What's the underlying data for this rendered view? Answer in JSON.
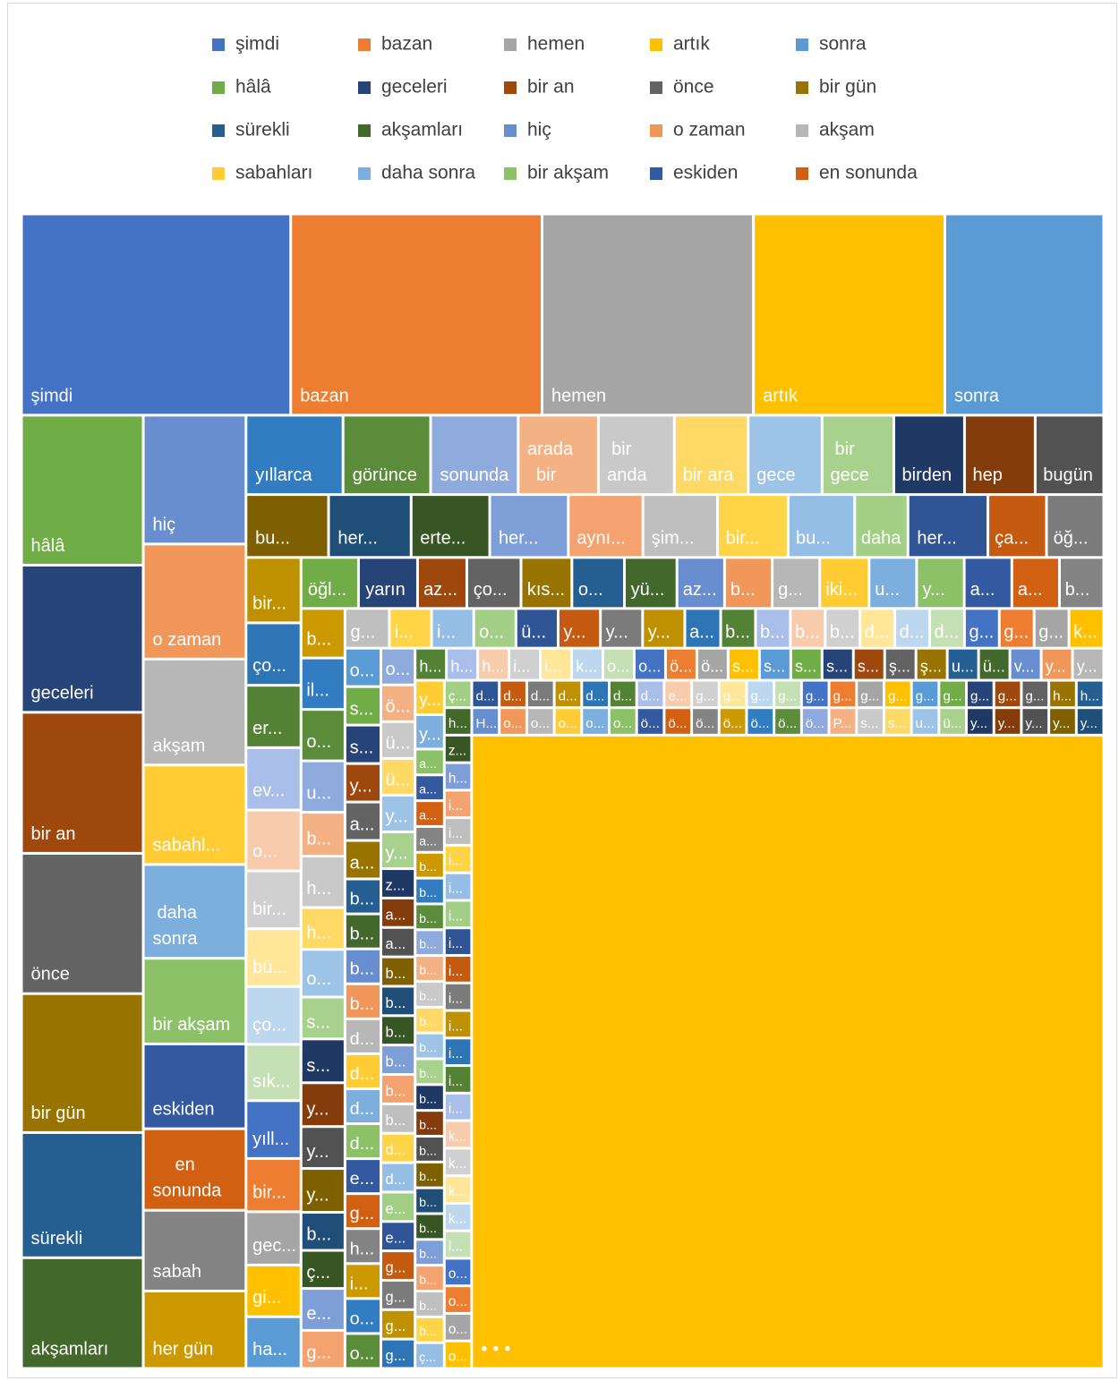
{
  "chart_data": {
    "type": "treemap",
    "legend": {
      "position": "top",
      "columns": 5,
      "entries": [
        "şimdi",
        "bazan",
        "hemen",
        "artık",
        "sonra",
        "hâlâ",
        "geceleri",
        "bir an",
        "önce",
        "bir gün",
        "sürekli",
        "akşamları",
        "hiç",
        "o zaman",
        "akşam",
        "sabahları",
        "daha sonra",
        "bir akşam",
        "eskiden",
        "en sonunda"
      ]
    },
    "palette": [
      "#4472C4",
      "#ED7D31",
      "#A5A5A5",
      "#FFC000",
      "#5B9BD5",
      "#70AD47",
      "#264478",
      "#9E480E",
      "#636363",
      "#997300",
      "#255E91",
      "#43682B",
      "#698ED0",
      "#F1975A",
      "#B7B7B7",
      "#FFCD33",
      "#7CAFDD",
      "#8CC168",
      "#335AA1",
      "#D26012",
      "#848484",
      "#CC9A00",
      "#327DC2",
      "#5B8C3A",
      "#8FAADC",
      "#F4B183",
      "#C9C9C9",
      "#FFD966",
      "#9DC3E6",
      "#A9D18E",
      "#203864",
      "#843C0C",
      "#525252",
      "#7F6000",
      "#1F4E79",
      "#375623",
      "#7E9ED8",
      "#F4A270",
      "#BFBFBF",
      "#FFD447",
      "#95BEE6",
      "#A2CF85",
      "#2F5597",
      "#C55A11",
      "#7B7B7B",
      "#BF9000",
      "#2E75B6",
      "#548235",
      "#A9BEE8",
      "#F8CBAD",
      "#D0D0D0",
      "#FFE699",
      "#BDD7EE",
      "#C5E0B4"
    ],
    "categories": [
      "şimdi",
      "bazan",
      "hemen",
      "artık",
      "sonra",
      "hâlâ",
      "geceleri",
      "bir an",
      "önce",
      "bir gün",
      "sürekli",
      "akşamları",
      "hiç",
      "o zaman",
      "akşam",
      "sabahl...",
      "daha sonra",
      "bir akşam",
      "eskiden",
      "en sonunda",
      "sabah",
      "her gün",
      "yıllarca",
      "görünce",
      "sonunda",
      "arada bir",
      "bir anda",
      "bir ara",
      "gece",
      "bir gece",
      "birden",
      "hep",
      "bugün",
      "bu...",
      "her...",
      "erte...",
      "her...",
      "aynı...",
      "şim...",
      "bir...",
      "bu...",
      "daha",
      "her...",
      "ça...",
      "öğ...",
      "bir...",
      "ço...",
      "er...",
      "ev...",
      "o...",
      "bir...",
      "bü...",
      "ço...",
      "sık...",
      "yıll...",
      "bir...",
      "gec...",
      "gi...",
      "ha...",
      "öğl...",
      "yarın",
      "az...",
      "ço...",
      "kıs...",
      "o...",
      "yü...",
      "az...",
      "b...",
      "g...",
      "iki...",
      "u...",
      "y...",
      "a...",
      "a...",
      "b...",
      "b...",
      "il...",
      "o...",
      "u...",
      "b...",
      "h...",
      "h...",
      "o...",
      "s...",
      "s...",
      "y...",
      "y...",
      "y...",
      "b...",
      "ç...",
      "e...",
      "g...",
      "g...",
      "i...",
      "i...",
      "o...",
      "ü...",
      "y...",
      "y...",
      "y...",
      "a...",
      "b...",
      "b...",
      "b...",
      "b...",
      "d...",
      "d...",
      "d...",
      "g...",
      "g...",
      "g...",
      "k...",
      "o...",
      "s...",
      "s...",
      "y...",
      "a...",
      "a...",
      "b...",
      "b...",
      "b...",
      "b...",
      "d...",
      "d...",
      "d...",
      "d...",
      "e...",
      "g...",
      "h...",
      "i...",
      "o...",
      "o...",
      "o...",
      "ö...",
      "ü...",
      "ü...",
      "y...",
      "y...",
      "z...",
      "a...",
      "a...",
      "b...",
      "b...",
      "b...",
      "b...",
      "b...",
      "b...",
      "d...",
      "d...",
      "e...",
      "e...",
      "g...",
      "g...",
      "g...",
      "g...",
      "h...",
      "h...",
      "h...",
      "i...",
      "i...",
      "k...",
      "o...",
      "o...",
      "ö...",
      "ö...",
      "s...",
      "s...",
      "s...",
      "s...",
      "s...",
      "ş...",
      "ş...",
      "u...",
      "ü...",
      "v...",
      "y...",
      "y...",
      "y...",
      "y...",
      "a...",
      "a...",
      "a...",
      "a...",
      "b...",
      "b...",
      "b...",
      "b...",
      "b...",
      "b...",
      "b...",
      "b...",
      "b...",
      "b...",
      "b...",
      "b...",
      "b...",
      "b...",
      "b...",
      "b...",
      "b...",
      "b...",
      "b...",
      "ç...",
      "ç...",
      "d...",
      "d...",
      "d...",
      "d...",
      "d...",
      "d...",
      "d...",
      "e...",
      "g...",
      "g...",
      "g...",
      "g...",
      "g...",
      "g...",
      "g...",
      "g...",
      "g...",
      "g...",
      "g...",
      "g...",
      "g...",
      "h...",
      "h...",
      "h...",
      "H...",
      "o...",
      "o...",
      "o...",
      "o...",
      "o...",
      "ö...",
      "ö...",
      "ö...",
      "ö...",
      "ö...",
      "ö...",
      "ö...",
      "P...",
      "s...",
      "s...",
      "u...",
      "ü...",
      "y...",
      "y...",
      "y...",
      "y...",
      "y...",
      "z...",
      "h...",
      "i...",
      "i...",
      "i...",
      "i...",
      "i...",
      "i...",
      "i...",
      "i...",
      "i...",
      "i...",
      "i...",
      "i...",
      "k...",
      "k...",
      "k...",
      "k...",
      "l...",
      "o...",
      "o...",
      "o...",
      "o..."
    ],
    "values": [
      64700,
      60400,
      50800,
      46000,
      38200,
      21800,
      21400,
      20500,
      20400,
      20200,
      18200,
      16100,
      15800,
      14100,
      13000,
      12200,
      11500,
      10500,
      10400,
      10000,
      9900,
      9500,
      9200,
      8300,
      8300,
      7600,
      7200,
      7000,
      7000,
      6800,
      6700,
      6700,
      6500,
      6200,
      6200,
      5900,
      5900,
      5600,
      5600,
      5300,
      5000,
      4000,
      6000,
      4400,
      4300,
      4300,
      4100,
      4100,
      4100,
      4000,
      3800,
      3800,
      3800,
      3700,
      3800,
      3500,
      3500,
      3400,
      3400,
      3500,
      3600,
      3000,
      3300,
      3100,
      3200,
      3200,
      2900,
      2900,
      2900,
      3000,
      2900,
      2900,
      2900,
      2900,
      2700,
      2600,
      2700,
      2700,
      2700,
      2300,
      2700,
      2200,
      2500,
      2200,
      2300,
      2300,
      2200,
      2300,
      2000,
      2000,
      2200,
      2000,
      2100,
      2000,
      2000,
      2000,
      2000,
      2000,
      2000,
      2000,
      1700,
      1650,
      1650,
      1650,
      1650,
      1650,
      1650,
      1650,
      1650,
      1650,
      1650,
      1650,
      1650,
      1650,
      1650,
      1650,
      1650,
      1650,
      1500,
      1500,
      1500,
      1500,
      1500,
      1500,
      1500,
      1500,
      1500,
      1500,
      1500,
      1500,
      1500,
      1500,
      1500,
      1500,
      1500,
      1500,
      1500,
      1500,
      1200,
      1200,
      1200,
      1200,
      1200,
      1200,
      1200,
      1200,
      1200,
      1200,
      1200,
      1200,
      1200,
      1200,
      1200,
      1200,
      1200,
      1200,
      1200,
      1200,
      1200,
      1200,
      1200,
      1200,
      1200,
      1200,
      1200,
      1200,
      1200,
      1200,
      1200,
      1200,
      1200,
      1200,
      1200,
      1200,
      1200,
      1200,
      1200,
      1200,
      1200,
      900,
      900,
      900,
      900,
      900,
      900,
      900,
      900,
      900,
      900,
      900,
      900,
      900,
      900,
      900,
      900,
      900,
      900,
      900,
      900,
      900,
      900,
      900,
      900,
      900,
      900,
      900,
      900,
      900,
      900,
      900,
      900,
      900,
      900,
      900,
      900,
      900,
      900,
      900,
      900,
      900,
      900,
      900,
      900,
      900,
      900,
      900,
      900,
      900,
      900,
      900,
      900,
      900,
      900,
      900,
      900,
      900,
      900,
      900,
      900,
      900,
      900,
      900,
      900,
      900,
      900,
      900,
      900,
      900,
      900,
      900,
      900,
      900,
      900,
      900,
      900,
      900,
      900,
      900,
      900,
      900,
      900,
      900,
      900,
      900,
      900,
      900,
      900,
      900,
      900,
      900,
      900,
      900,
      900,
      900
    ],
    "more": {
      "label": "•••",
      "value": 478000,
      "color": "#FFC000"
    }
  }
}
